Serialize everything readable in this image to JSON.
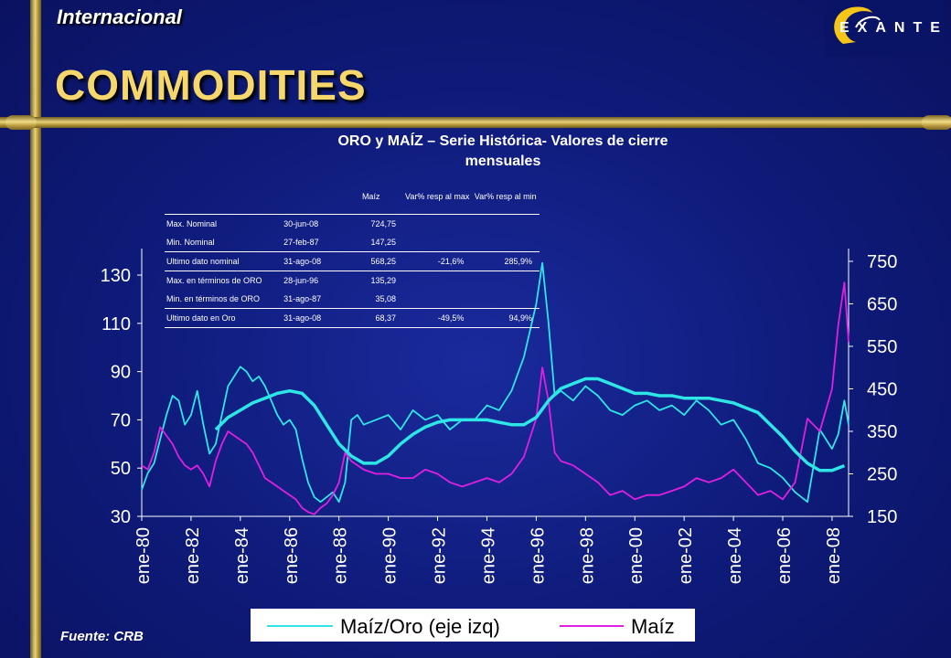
{
  "header": {
    "section_title": "Internacional",
    "main_title": "COMMODITIES",
    "logo_text": "EXANTE"
  },
  "source": "Fuente: CRB",
  "colors": {
    "ratio_series": "#2ee6e6",
    "corn_series": "#e020e0",
    "moving_average": "#2ee6e6",
    "title": "#f5d76b"
  },
  "table": {
    "columns": [
      "",
      "",
      "Maíz",
      "Var% resp al max",
      "Var% resp al min"
    ],
    "rows": [
      {
        "label": "Max. Nominal",
        "date": "30-jun-08",
        "value": "724,75",
        "var_max": "",
        "var_min": ""
      },
      {
        "label": "Min. Nominal",
        "date": "27-feb-87",
        "value": "147,25",
        "var_max": "",
        "var_min": ""
      },
      {
        "label": "Ultimo dato nominal",
        "date": "31-ago-08",
        "value": "568,25",
        "var_max": "-21,6%",
        "var_min": "285,9%"
      },
      {
        "label": "Max. en términos de ORO",
        "date": "28-jun-96",
        "value": "135,29",
        "var_max": "",
        "var_min": ""
      },
      {
        "label": "Min. en términos de ORO",
        "date": "31-ago-87",
        "value": "35,08",
        "var_max": "",
        "var_min": ""
      },
      {
        "label": "Ultimo dato en Oro",
        "date": "31-ago-08",
        "value": "68,37",
        "var_max": "-49,5%",
        "var_min": "94,9%"
      }
    ]
  },
  "chart_data": {
    "type": "line",
    "title": "ORO y MAÍZ – Serie Histórica- Valores de cierre mensuales",
    "x_ticks": [
      "ene-80",
      "ene-82",
      "ene-84",
      "ene-86",
      "ene-88",
      "ene-90",
      "ene-92",
      "ene-94",
      "ene-96",
      "ene-98",
      "ene-00",
      "ene-02",
      "ene-04",
      "ene-06",
      "ene-08"
    ],
    "x_range": [
      1980,
      2008.67
    ],
    "y_left": {
      "ticks": [
        30,
        50,
        70,
        90,
        110,
        130
      ],
      "range": [
        30,
        141
      ]
    },
    "y_right": {
      "ticks": [
        150,
        250,
        350,
        450,
        550,
        650,
        750
      ],
      "range": [
        150,
        780
      ]
    },
    "legend": {
      "placement": "bottom",
      "entries": [
        "Maíz/Oro (eje izq)",
        "Maíz"
      ]
    },
    "series": [
      {
        "name": "Maíz/Oro (eje izq)",
        "axis": "left",
        "x": [
          1980,
          1980.25,
          1980.5,
          1980.75,
          1981,
          1981.25,
          1981.5,
          1981.75,
          1982,
          1982.25,
          1982.5,
          1982.75,
          1983,
          1983.25,
          1983.5,
          1983.75,
          1984,
          1984.25,
          1984.5,
          1984.75,
          1985,
          1985.25,
          1985.5,
          1985.75,
          1986,
          1986.25,
          1986.5,
          1986.75,
          1987,
          1987.25,
          1987.5,
          1987.75,
          1988,
          1988.25,
          1988.5,
          1988.75,
          1989,
          1989.5,
          1990,
          1990.5,
          1991,
          1991.5,
          1992,
          1992.5,
          1993,
          1993.5,
          1994,
          1994.5,
          1995,
          1995.5,
          1996,
          1996.25,
          1996.5,
          1996.75,
          1997,
          1997.5,
          1998,
          1998.5,
          1999,
          1999.5,
          2000,
          2000.5,
          2001,
          2001.5,
          2002,
          2002.5,
          2003,
          2003.5,
          2004,
          2004.5,
          2005,
          2005.5,
          2006,
          2006.5,
          2007,
          2007.5,
          2008,
          2008.25,
          2008.5,
          2008.67
        ],
        "values": [
          41,
          48,
          52,
          62,
          72,
          80,
          78,
          68,
          72,
          82,
          68,
          56,
          60,
          72,
          84,
          88,
          92,
          90,
          86,
          88,
          84,
          78,
          72,
          68,
          70,
          66,
          54,
          44,
          38,
          36,
          38,
          40,
          36,
          44,
          70,
          72,
          68,
          70,
          72,
          66,
          74,
          70,
          72,
          66,
          70,
          70,
          76,
          74,
          82,
          96,
          118,
          135,
          110,
          80,
          82,
          78,
          84,
          80,
          74,
          72,
          76,
          78,
          74,
          76,
          72,
          78,
          74,
          68,
          70,
          62,
          52,
          50,
          46,
          40,
          36,
          66,
          58,
          64,
          78,
          68
        ]
      },
      {
        "name": "Maíz",
        "axis": "right",
        "x": [
          1980,
          1980.25,
          1980.5,
          1980.75,
          1981,
          1981.25,
          1981.5,
          1981.75,
          1982,
          1982.25,
          1982.5,
          1982.75,
          1983,
          1983.25,
          1983.5,
          1983.75,
          1984,
          1984.25,
          1984.5,
          1984.75,
          1985,
          1985.25,
          1985.5,
          1985.75,
          1986,
          1986.25,
          1986.5,
          1986.75,
          1987,
          1987.25,
          1987.5,
          1987.75,
          1988,
          1988.25,
          1988.5,
          1988.75,
          1989,
          1989.5,
          1990,
          1990.5,
          1991,
          1991.5,
          1992,
          1992.5,
          1993,
          1993.5,
          1994,
          1994.5,
          1995,
          1995.5,
          1996,
          1996.25,
          1996.5,
          1996.75,
          1997,
          1997.5,
          1998,
          1998.5,
          1999,
          1999.5,
          2000,
          2000.5,
          2001,
          2001.5,
          2002,
          2002.5,
          2003,
          2003.5,
          2004,
          2004.5,
          2005,
          2005.5,
          2006,
          2006.5,
          2007,
          2007.5,
          2008,
          2008.25,
          2008.5,
          2008.67
        ],
        "values": [
          270,
          260,
          300,
          360,
          340,
          320,
          290,
          270,
          260,
          270,
          250,
          220,
          280,
          320,
          350,
          340,
          330,
          320,
          300,
          270,
          240,
          230,
          220,
          210,
          200,
          190,
          170,
          160,
          155,
          170,
          180,
          200,
          230,
          300,
          280,
          270,
          260,
          250,
          250,
          240,
          240,
          260,
          250,
          230,
          220,
          230,
          240,
          230,
          250,
          290,
          380,
          500,
          420,
          300,
          280,
          270,
          250,
          230,
          200,
          210,
          190,
          200,
          200,
          210,
          220,
          240,
          230,
          240,
          260,
          230,
          200,
          210,
          190,
          230,
          380,
          350,
          450,
          600,
          700,
          560
        ]
      },
      {
        "name": "",
        "axis": "left",
        "x": [
          1983,
          1983.5,
          1984,
          1984.5,
          1985,
          1985.5,
          1986,
          1986.5,
          1987,
          1987.5,
          1988,
          1988.5,
          1989,
          1989.5,
          1990,
          1990.5,
          1991,
          1991.5,
          1992,
          1992.5,
          1993,
          1993.5,
          1994,
          1994.5,
          1995,
          1995.5,
          1996,
          1996.5,
          1997,
          1997.5,
          1998,
          1998.5,
          1999,
          1999.5,
          2000,
          2000.5,
          2001,
          2001.5,
          2002,
          2002.5,
          2003,
          2003.5,
          2004,
          2004.5,
          2005,
          2005.5,
          2006,
          2006.5,
          2007,
          2007.5,
          2008,
          2008.5
        ],
        "values": [
          66,
          71,
          74,
          77,
          79,
          81,
          82,
          81,
          76,
          68,
          60,
          55,
          52,
          52,
          55,
          60,
          64,
          67,
          69,
          70,
          70,
          70,
          70,
          69,
          68,
          68,
          71,
          78,
          83,
          85,
          87,
          87,
          85,
          83,
          81,
          81,
          80,
          80,
          79,
          79,
          79,
          78,
          77,
          75,
          73,
          68,
          63,
          57,
          52,
          49,
          49,
          51
        ]
      }
    ]
  }
}
